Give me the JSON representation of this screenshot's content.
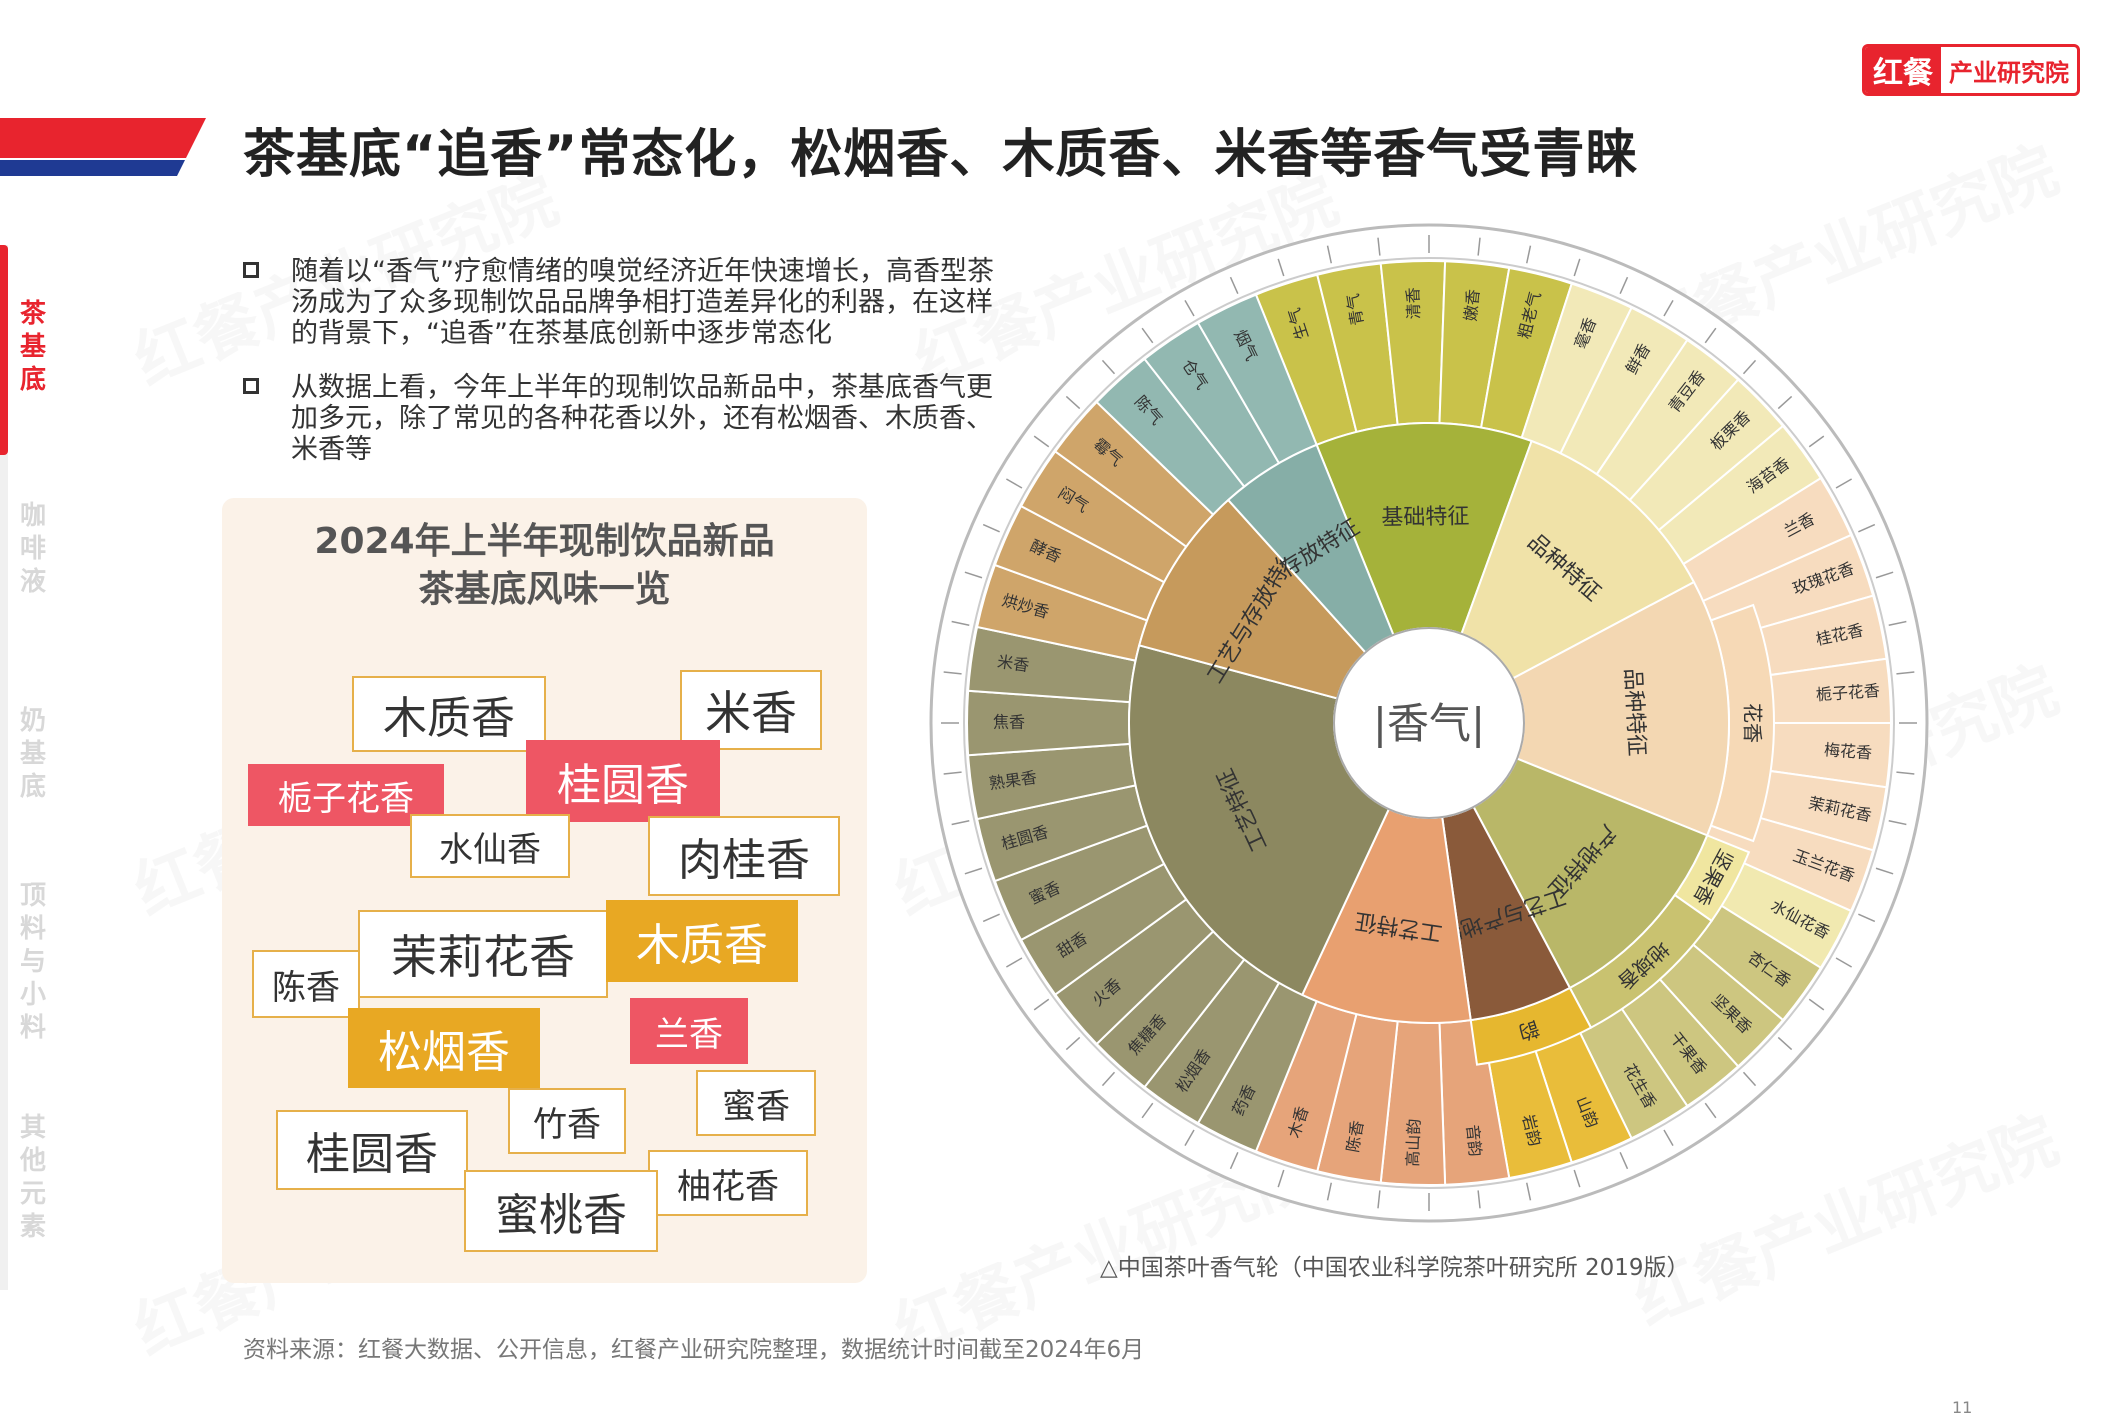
{
  "header": {
    "title": "茶基底“追香”常态化，松烟香、木质香、米香等香气受青睐",
    "logo_mark": "红餐",
    "logo_text": "产业研究院"
  },
  "nav": {
    "items": [
      {
        "label": "茶基底",
        "active": true
      },
      {
        "label": "咖啡液",
        "active": false
      },
      {
        "label": "奶基底",
        "active": false
      },
      {
        "label": "顶料与小料",
        "active": false
      },
      {
        "label": "其他元素",
        "active": false
      }
    ]
  },
  "bullets": [
    "随着以“香气”疗愈情绪的嗅觉经济近年快速增长，高香型茶汤成为了众多现制饮品品牌争相打造差异化的利器，在这样的背景下，“追香”在茶基底创新中逐步常态化",
    "从数据上看，今年上半年的现制饮品新品中，茶基底香气更加多元，除了常见的各种花香以外，还有松烟香、木质香、米香等"
  ],
  "card": {
    "title_line1": "2024年上半年现制饮品新品",
    "title_line2": "茶基底风味一览",
    "tags": [
      {
        "text": "木质香",
        "style": "w"
      },
      {
        "text": "米香",
        "style": "w"
      },
      {
        "text": "栀子花香",
        "style": "r"
      },
      {
        "text": "桂圆香",
        "style": "r"
      },
      {
        "text": "水仙香",
        "style": "w"
      },
      {
        "text": "肉桂香",
        "style": "w"
      },
      {
        "text": "茉莉花香",
        "style": "w"
      },
      {
        "text": "木质香",
        "style": "y"
      },
      {
        "text": "陈香",
        "style": "w"
      },
      {
        "text": "松烟香",
        "style": "y"
      },
      {
        "text": "兰香",
        "style": "r"
      },
      {
        "text": "竹香",
        "style": "w"
      },
      {
        "text": "蜜香",
        "style": "w"
      },
      {
        "text": "桂圆香",
        "style": "w"
      },
      {
        "text": "柚花香",
        "style": "w"
      },
      {
        "text": "蜜桃香",
        "style": "w"
      }
    ]
  },
  "wheel": {
    "center": "|香气|",
    "inner": [
      {
        "label": "基础特征",
        "color": "#a5b23a"
      },
      {
        "label": "品种特征",
        "color": "#f0e2a8"
      },
      {
        "label": "品种特征",
        "color": "#f3d7b2"
      },
      {
        "label": "产地特征",
        "color": "#b9b768"
      },
      {
        "label": "工艺与产地特征",
        "color": "#8a5a3a"
      },
      {
        "label": "工艺特征",
        "color": "#e8a070"
      },
      {
        "label": "工艺特征",
        "color": "#8c8860"
      },
      {
        "label": "工艺与存放特征",
        "color": "#c69a5c"
      },
      {
        "label": "存放特征",
        "color": "#86aea7"
      }
    ],
    "middle": [
      {
        "label": "花香",
        "color": "#f6d9b6"
      },
      {
        "label": "坚果香",
        "color": "#f0e6a0"
      },
      {
        "label": "地域香",
        "color": "#c9c270"
      },
      {
        "label": "韵",
        "color": "#e6b72f"
      }
    ],
    "outer_labels": [
      "生气",
      "青气",
      "清香",
      "嫩香",
      "粗老气",
      "毫香",
      "鲜香",
      "青豆香",
      "板栗香",
      "海苔香",
      "兰香",
      "玫瑰花香",
      "桂花香",
      "栀子花香",
      "梅花香",
      "茉莉花香",
      "玉兰花香",
      "水仙花香",
      "杏仁香",
      "坚果香",
      "干果香",
      "花生香",
      "山韵",
      "岩韵",
      "音韵",
      "高山韵",
      "陈香",
      "木香",
      "药香",
      "松烟香",
      "焦糖香",
      "火香",
      "甜香",
      "蜜香",
      "桂圆香",
      "熟果香",
      "焦香",
      "米香",
      "烘炒香",
      "酵香",
      "闷气",
      "霉气",
      "陈气",
      "仓气",
      "烟气"
    ]
  },
  "caption": "△中国茶叶香气轮（中国农业科学院茶叶研究所 2019版）",
  "source": "资料来源：红餐大数据、公开信息，红餐产业研究院整理，数据统计时间截至2024年6月",
  "page_number": "11",
  "watermark": "红餐产业研究院"
}
